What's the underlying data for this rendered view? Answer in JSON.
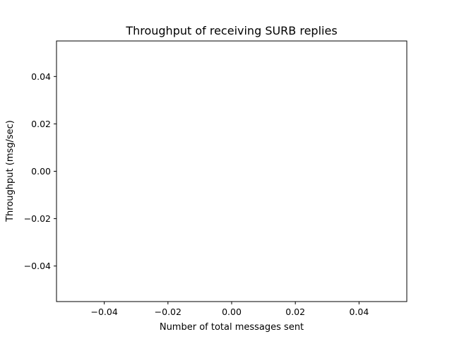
{
  "chart_data": {
    "type": "line",
    "title": "Throughput of receiving SURB replies",
    "xlabel": "Number of total messages sent",
    "ylabel": "Throughput (msg/sec)",
    "xlim": [
      -0.055,
      0.055
    ],
    "ylim": [
      -0.055,
      0.055
    ],
    "x_ticks": [
      -0.04,
      -0.02,
      0.0,
      0.02,
      0.04
    ],
    "x_tick_labels": [
      "−0.04",
      "−0.02",
      "0.00",
      "0.02",
      "0.04"
    ],
    "y_ticks": [
      -0.04,
      -0.02,
      0.0,
      0.02,
      0.04
    ],
    "y_tick_labels": [
      "−0.04",
      "−0.02",
      "0.00",
      "0.02",
      "0.04"
    ],
    "grid": false,
    "series": [
      {
        "x": [],
        "y": []
      }
    ]
  }
}
